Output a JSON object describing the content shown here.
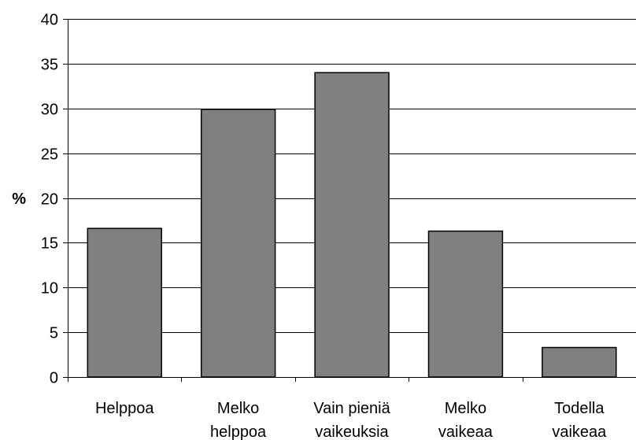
{
  "chart_data": {
    "type": "bar",
    "title": "",
    "xlabel": "",
    "ylabel": "%",
    "categories": [
      [
        "Helppoa"
      ],
      [
        "Melko",
        "helppoa"
      ],
      [
        "Vain pieniä",
        "vaikeuksia"
      ],
      [
        "Melko",
        "vaikeaa"
      ],
      [
        "Todella",
        "vaikeaa"
      ]
    ],
    "values": [
      16.6,
      29.9,
      34.0,
      16.3,
      3.3
    ],
    "ylim": [
      0,
      40
    ],
    "yticks": [
      0,
      5,
      10,
      15,
      20,
      25,
      30,
      35,
      40
    ],
    "grid": true,
    "bar_color": "#808080",
    "bar_edge_color": "#000000",
    "grid_color": "#000000",
    "legend": "none"
  }
}
